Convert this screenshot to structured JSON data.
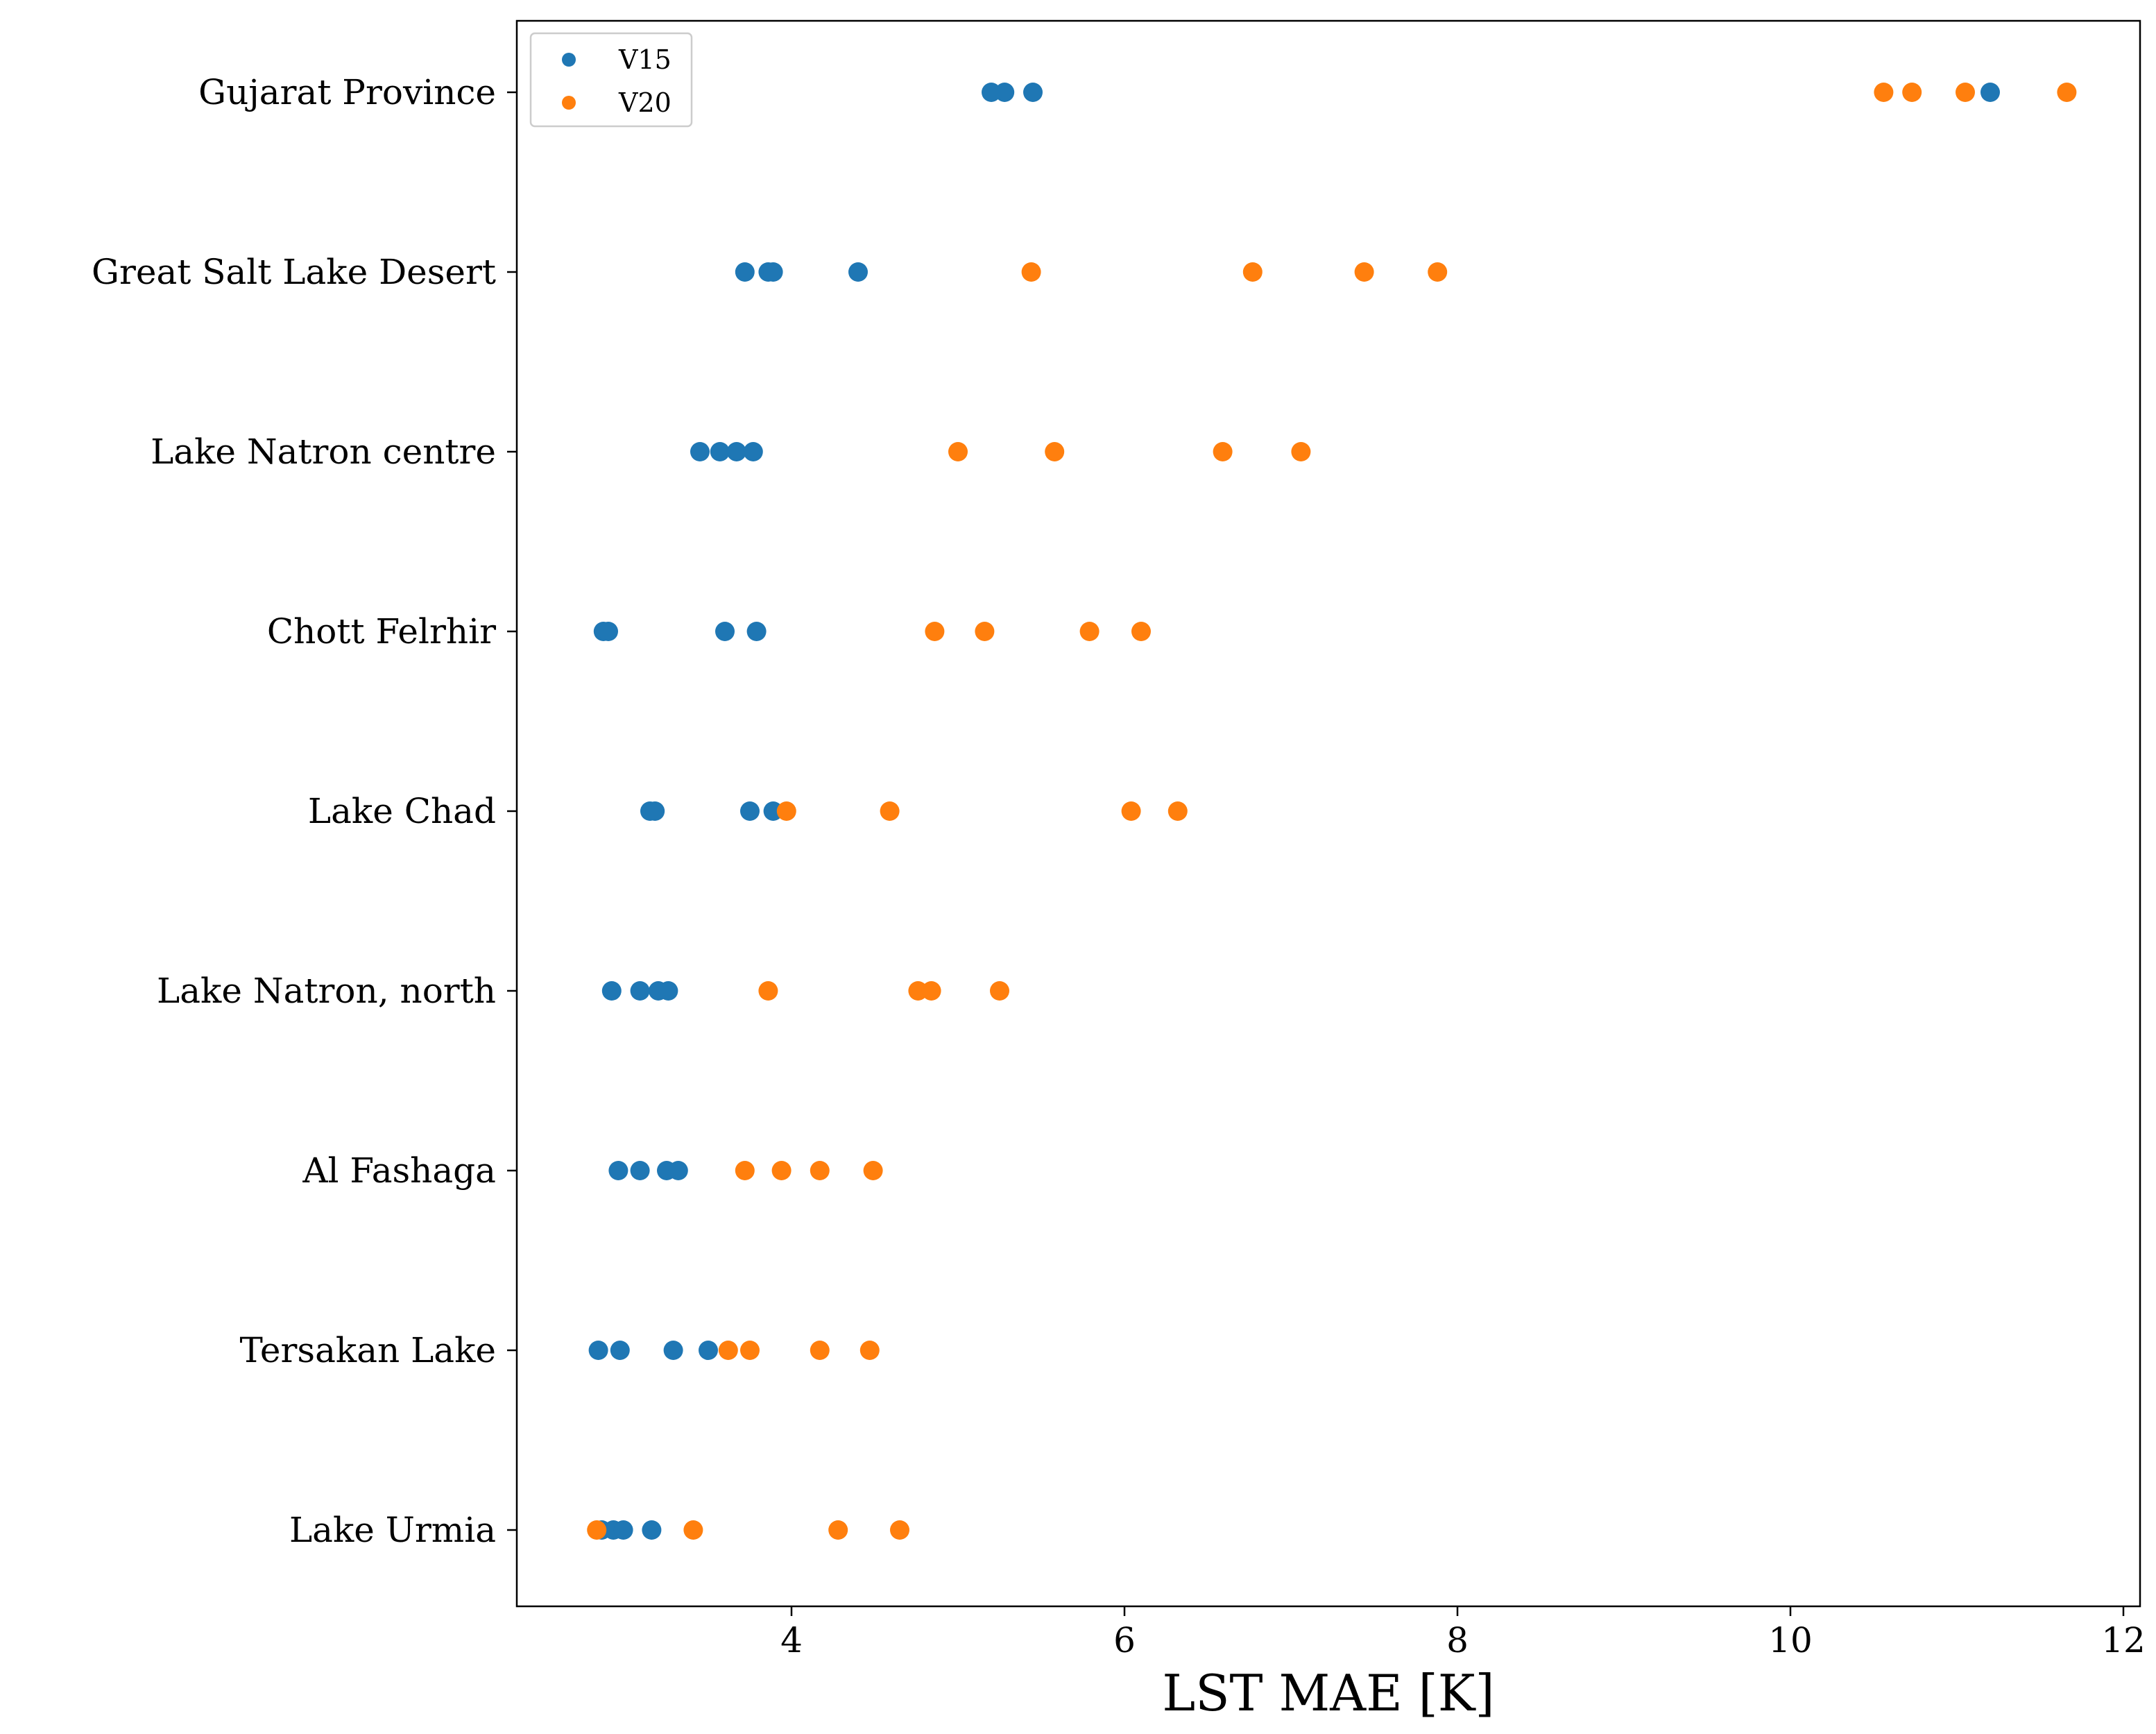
{
  "chart_data": {
    "type": "scatter",
    "xlabel": "LST MAE [K]",
    "ylabel": "",
    "xlim": [
      2.35,
      12.1
    ],
    "xticks": [
      4,
      6,
      8,
      10,
      12
    ],
    "categories": [
      "Gujarat Province",
      "Great Salt Lake Desert",
      "Lake Natron centre",
      "Chott Felrhir",
      "Lake Chad",
      "Lake Natron, north",
      "Al Fashaga",
      "Tersakan Lake",
      "Lake Urmia"
    ],
    "legend_position": "top-left",
    "grid": false,
    "series": [
      {
        "name": "V15",
        "color": "#1f77b4",
        "values": [
          [
            5.2,
            5.28,
            5.45,
            11.2
          ],
          [
            3.72,
            3.86,
            3.89,
            4.4
          ],
          [
            3.45,
            3.57,
            3.67,
            3.77
          ],
          [
            2.87,
            2.9,
            3.6,
            3.79
          ],
          [
            3.15,
            3.18,
            3.75,
            3.89
          ],
          [
            2.92,
            3.09,
            3.2,
            3.26
          ],
          [
            2.96,
            3.09,
            3.25,
            3.32
          ],
          [
            2.84,
            2.97,
            3.29,
            3.5
          ],
          [
            2.86,
            2.93,
            2.99,
            3.16
          ]
        ]
      },
      {
        "name": "V20",
        "color": "#ff7f0e",
        "values": [
          [
            10.56,
            10.73,
            11.05,
            11.66
          ],
          [
            5.44,
            6.77,
            7.44,
            7.88
          ],
          [
            5.0,
            5.58,
            6.59,
            7.06
          ],
          [
            4.86,
            5.16,
            5.79,
            6.1
          ],
          [
            3.97,
            4.59,
            6.04,
            6.32
          ],
          [
            3.86,
            4.76,
            4.84,
            5.25
          ],
          [
            3.72,
            3.94,
            4.17,
            4.49
          ],
          [
            3.62,
            3.75,
            4.17,
            4.47
          ],
          [
            2.83,
            3.41,
            4.28,
            4.65
          ]
        ]
      }
    ]
  }
}
